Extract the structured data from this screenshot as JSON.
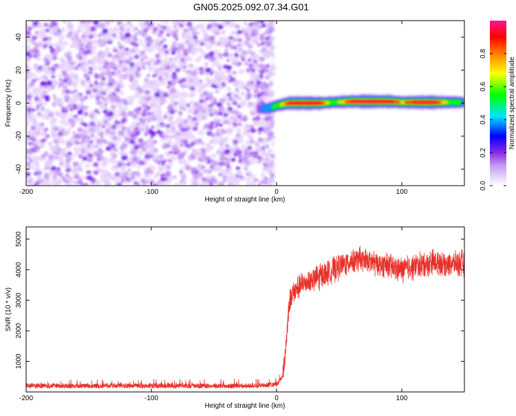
{
  "page": {
    "title": "GN05.2025.092.07.34.G01"
  },
  "colors": {
    "background": "#ffffff",
    "axis": "#000000",
    "snr_line": "#e8302a",
    "noise_purple": "#7a1fe0"
  },
  "chart_data": [
    {
      "type": "heatmap",
      "title": "GN05.2025.092.07.34.G01",
      "xlabel": "Height of straight line (km)",
      "ylabel": "Frequency (Hz)",
      "xlim": [
        -200,
        150
      ],
      "ylim": [
        -50,
        50
      ],
      "x_ticks": [
        -200,
        -100,
        0,
        100
      ],
      "y_ticks": [
        -40,
        -20,
        0,
        20,
        40
      ],
      "x_tick_labels": [
        "-200",
        "-100",
        "0",
        "100"
      ],
      "y_tick_labels": [
        "-40",
        "-20",
        "0",
        "20",
        "40"
      ],
      "colorbar": {
        "label": "Normalized spectral amplitude",
        "range": [
          0,
          1
        ],
        "ticks": [
          0.0,
          0.2,
          0.4,
          0.6,
          0.8
        ],
        "tick_labels": [
          "0.0",
          "0.2",
          "0.4",
          "0.6",
          "0.8"
        ],
        "colormap": "rainbow (white→violet→blue→cyan→green→yellow→red→pink)"
      },
      "regions": [
        {
          "name": "noise",
          "x_range": [
            -200,
            -5
          ],
          "freq_range": [
            -50,
            50
          ],
          "amplitude": 0.2
        },
        {
          "name": "signal",
          "x_range": [
            -15,
            150
          ],
          "freq_center": 0.5,
          "amplitude": 1.0
        }
      ],
      "signal_ridge": [
        {
          "x": -15,
          "freq": -3.5,
          "amp": 0.3
        },
        {
          "x": -5,
          "freq": -3.0,
          "amp": 0.5
        },
        {
          "x": 0,
          "freq": -1.5,
          "amp": 0.6
        },
        {
          "x": 10,
          "freq": 0.0,
          "amp": 0.95
        },
        {
          "x": 20,
          "freq": 0.0,
          "amp": 1.0
        },
        {
          "x": 35,
          "freq": 0.0,
          "amp": 0.95
        },
        {
          "x": 45,
          "freq": 0.5,
          "amp": 0.6
        },
        {
          "x": 60,
          "freq": 1.0,
          "amp": 0.95
        },
        {
          "x": 75,
          "freq": 1.0,
          "amp": 1.0
        },
        {
          "x": 90,
          "freq": 1.0,
          "amp": 1.0
        },
        {
          "x": 100,
          "freq": 0.5,
          "amp": 0.8
        },
        {
          "x": 110,
          "freq": 0.5,
          "amp": 0.95
        },
        {
          "x": 125,
          "freq": 0.5,
          "amp": 1.0
        },
        {
          "x": 140,
          "freq": 0.5,
          "amp": 0.6
        },
        {
          "x": 150,
          "freq": 0.5,
          "amp": 0.5
        }
      ]
    },
    {
      "type": "line",
      "xlabel": "Height of straight line (km)",
      "ylabel": "SNR (10 * v/v)",
      "xlim": [
        -200,
        150
      ],
      "ylim": [
        0,
        5400
      ],
      "x_ticks": [
        -200,
        -100,
        0,
        100
      ],
      "y_ticks": [
        1000,
        2000,
        3000,
        4000,
        5000
      ],
      "x_tick_labels": [
        "-200",
        "-100",
        "0",
        "100"
      ],
      "y_tick_labels": [
        "1000",
        "2000",
        "3000",
        "4000",
        "5000"
      ],
      "series": [
        {
          "color": "#e8302a",
          "x": [
            -200,
            -180,
            -160,
            -140,
            -120,
            -100,
            -80,
            -60,
            -40,
            -20,
            -10,
            0,
            5,
            8,
            10,
            12,
            15,
            18,
            20,
            25,
            30,
            35,
            40,
            45,
            50,
            55,
            60,
            65,
            70,
            75,
            80,
            85,
            90,
            95,
            100,
            105,
            110,
            115,
            120,
            125,
            130,
            135,
            140,
            145,
            150
          ],
          "y": [
            200,
            200,
            200,
            200,
            200,
            200,
            200,
            200,
            200,
            200,
            220,
            250,
            500,
            1800,
            2900,
            3200,
            3300,
            3450,
            3500,
            3600,
            3700,
            3800,
            3900,
            4000,
            4100,
            4200,
            4300,
            4350,
            4300,
            4250,
            4200,
            4150,
            4100,
            4050,
            4000,
            4050,
            4100,
            4150,
            4200,
            4250,
            4250,
            4200,
            4200,
            4200,
            4200
          ],
          "noise_band": 250
        }
      ]
    }
  ]
}
